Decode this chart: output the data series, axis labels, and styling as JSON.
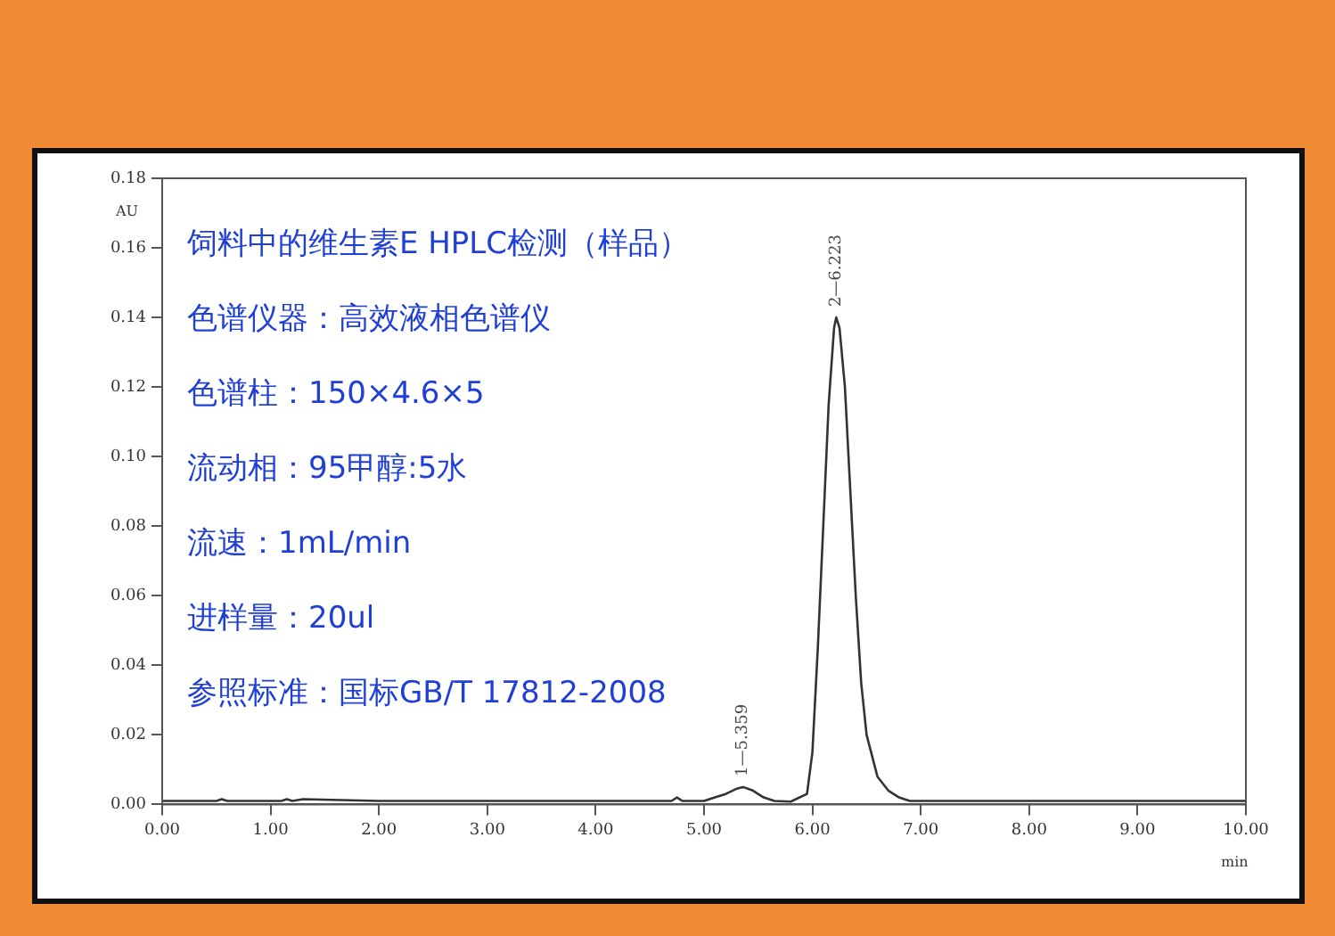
{
  "chart_data": {
    "type": "line",
    "title": "饲料中的维生素E HPLC检测（样品）",
    "xlabel": "min",
    "ylabel": "AU",
    "annotations": [
      "色谱仪器：高效液相色谱仪",
      "色谱柱：150×4.6×5",
      "流动相：95甲醇:5水",
      "流速：1mL/min",
      "进样量：20ul",
      "参照标准：国标GB/T 17812-2008",
      {
        "text": "1—5.359",
        "x": 5.359,
        "y": 0.005
      },
      {
        "text": "2—6.223",
        "x": 6.223,
        "y": 0.14
      }
    ],
    "series": [
      {
        "color": "#333333",
        "x": [
          0,
          0.5,
          0.55,
          0.6,
          1.1,
          1.15,
          1.2,
          1.3,
          2,
          3,
          4,
          4.7,
          4.75,
          4.8,
          5.0,
          5.1,
          5.2,
          5.3,
          5.36,
          5.45,
          5.55,
          5.65,
          5.8,
          5.95,
          6.0,
          6.05,
          6.1,
          6.15,
          6.2,
          6.22,
          6.25,
          6.3,
          6.35,
          6.4,
          6.45,
          6.5,
          6.6,
          6.7,
          6.8,
          6.9,
          7,
          8,
          10
        ],
        "values": [
          0.001,
          0.001,
          0.0015,
          0.001,
          0.001,
          0.0015,
          0.001,
          0.0015,
          0.001,
          0.001,
          0.001,
          0.001,
          0.002,
          0.001,
          0.001,
          0.002,
          0.003,
          0.0045,
          0.005,
          0.004,
          0.002,
          0.001,
          0.0008,
          0.003,
          0.015,
          0.045,
          0.08,
          0.115,
          0.137,
          0.14,
          0.137,
          0.12,
          0.09,
          0.06,
          0.035,
          0.02,
          0.008,
          0.004,
          0.002,
          0.001,
          0.001,
          0.001,
          0.001
        ]
      }
    ],
    "xlim": [
      0,
      10
    ],
    "xticks": [
      {
        "value": 0,
        "label": "0.00"
      },
      {
        "value": 1,
        "label": "1.00"
      },
      {
        "value": 2,
        "label": "2.00"
      },
      {
        "value": 3,
        "label": "3.00"
      },
      {
        "value": 4,
        "label": "4.00"
      },
      {
        "value": 5,
        "label": "5.00"
      },
      {
        "value": 6,
        "label": "6.00"
      },
      {
        "value": 7,
        "label": "7.00"
      },
      {
        "value": 8,
        "label": "8.00"
      },
      {
        "value": 9,
        "label": "9.00"
      },
      {
        "value": 10,
        "label": "10.00"
      }
    ],
    "ylim": [
      0,
      0.18
    ],
    "yticks": [
      {
        "value": 0,
        "label": "0.00"
      },
      {
        "value": 0.02,
        "label": "0.02"
      },
      {
        "value": 0.04,
        "label": "0.04"
      },
      {
        "value": 0.06,
        "label": "0.06"
      },
      {
        "value": 0.08,
        "label": "0.08"
      },
      {
        "value": 0.1,
        "label": "0.10"
      },
      {
        "value": 0.12,
        "label": "0.12"
      },
      {
        "value": 0.14,
        "label": "0.14"
      },
      {
        "value": 0.16,
        "label": "0.16"
      },
      {
        "value": 0.18,
        "label": "0.18"
      }
    ],
    "grid": false,
    "legend": false,
    "marker": "none",
    "line_style": "solid"
  }
}
